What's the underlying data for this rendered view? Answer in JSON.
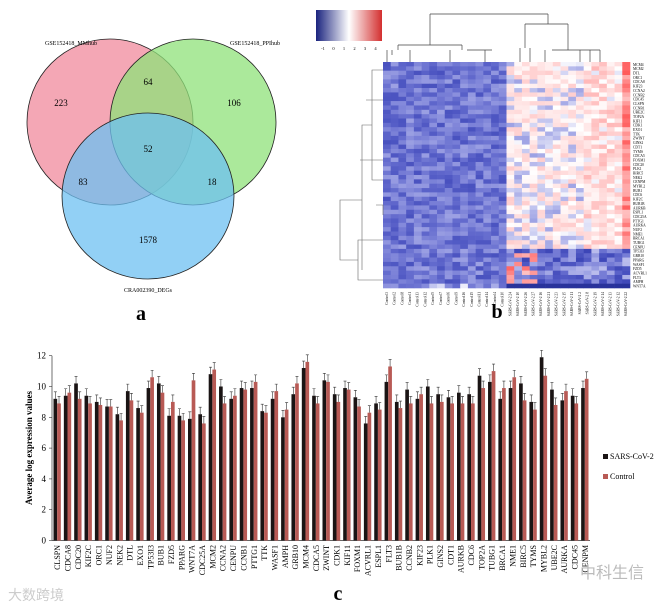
{
  "panels": {
    "a": "a",
    "b": "b",
    "c": "c"
  },
  "watermarks": [
    "大数跨境",
    "中科生信"
  ],
  "chart_data": [
    {
      "type": "venn",
      "panel": "a",
      "sets": [
        "GSE152418_MMhub",
        "GSE152418_PPIhub",
        "CRA002390_DEGs"
      ],
      "regions": {
        "A_only": 223,
        "B_only": 106,
        "C_only": 1578,
        "AB": 64,
        "AC": 83,
        "BC": 18,
        "ABC": 52
      },
      "colors": [
        "#f08a9c",
        "#8fe27a",
        "#6ec0f2"
      ]
    },
    {
      "type": "heatmap",
      "panel": "b",
      "colorbar": {
        "ticks": [
          "-1",
          "0",
          "1",
          "2",
          "3",
          "4"
        ],
        "colors": [
          "#1a237e",
          "#ffffff",
          "#d32f2f"
        ]
      },
      "rows": [
        "MCM4",
        "MCM2",
        "DTL",
        "ORC1",
        "CDCA8",
        "KIF23",
        "CCNA2",
        "CCNB2",
        "CDC45",
        "CLSPN",
        "CCNB1",
        "UBE2C",
        "TOP2A",
        "KIF11",
        "CDK1",
        "EXO1",
        "TTK",
        "ZWINT",
        "GINS2",
        "CDT1",
        "TYMS",
        "CDCA5",
        "FOXM1",
        "CDC20",
        "PLK1",
        "BIRC5",
        "NEK2",
        "CENPM",
        "MYBL2",
        "BUB1",
        "CDC6",
        "KIF2C",
        "BUB1B",
        "AURKB",
        "ESPL1",
        "CDC25A",
        "PTTG1",
        "AURKA",
        "NUF2",
        "NME1",
        "BRCA1",
        "TUBG1",
        "CENPU",
        "TP53I3",
        "GRB10",
        "PPARG",
        "WASF1",
        "FZD5",
        "ACVRL1",
        "FLT3",
        "AMPH",
        "WNT7A"
      ],
      "columns": [
        "Control3",
        "Control2",
        "Control8",
        "Control1",
        "Control13",
        "Control12",
        "Control5",
        "Control7",
        "Control6",
        "Control9",
        "Control16",
        "Control15",
        "Control11",
        "Control14",
        "Control4",
        "Control10",
        "SARS-CoV-2 24",
        "SARS-CoV-2 10",
        "SARS-CoV-2 26",
        "SARS-CoV-2 27",
        "SARS-CoV-2 16",
        "SARS-CoV-2 21",
        "SARS-CoV-2 23",
        "SARS-CoV-2 15",
        "SARS-CoV-2 11",
        "SARS-CoV-2 2",
        "SARS-CoV-2 8",
        "SARS-CoV-2 19",
        "SARS-CoV-2 14",
        "SARS-CoV-2 13",
        "SARS-CoV-2 12",
        "SARS-CoV-2 22"
      ]
    },
    {
      "type": "bar",
      "panel": "c",
      "ylabel": "Average log expression values",
      "ylim": [
        0,
        12
      ],
      "yticks": [
        0,
        2,
        4,
        6,
        8,
        10,
        12
      ],
      "categories": [
        "CLSPN",
        "CDCA8",
        "CDC20",
        "KIF2C",
        "ORC1",
        "NUF2",
        "NEK2",
        "DTL",
        "EXO1",
        "TP53I3",
        "BUB1",
        "FZD5",
        "PPARG",
        "WNT7A",
        "CDC25A",
        "MCM2",
        "CCNA2",
        "CENPU",
        "CCNB1",
        "PTTG1",
        "TTK",
        "WASF1",
        "AMPH",
        "GRB10",
        "MCM4",
        "CDCA5",
        "ZWINT",
        "CDK1",
        "KIF11",
        "FOXM1",
        "ACVRL1",
        "ESPL1",
        "FLT3",
        "BUB1B",
        "CCNB2",
        "KIF23",
        "PLK1",
        "GINS2",
        "CDT1",
        "AURKB",
        "CDC6",
        "TOP2A",
        "TUBG1",
        "BRCA1",
        "NME1",
        "BIRC5",
        "TYMS",
        "MYBL2",
        "UBE2C",
        "AURKA",
        "CDC45",
        "CENPM"
      ],
      "series": [
        {
          "name": "SARS-CoV-2",
          "color": "#1a1414",
          "values": [
            9.2,
            9.4,
            10.2,
            9.4,
            9.0,
            8.7,
            8.2,
            9.7,
            8.6,
            9.9,
            10.2,
            8.1,
            8.1,
            7.9,
            8.2,
            10.8,
            10.0,
            9.2,
            9.9,
            9.9,
            8.4,
            9.2,
            8.0,
            9.5,
            11.2,
            9.4,
            10.4,
            9.5,
            9.9,
            9.3,
            7.6,
            8.9,
            10.3,
            9.0,
            9.8,
            9.2,
            10.0,
            9.5,
            9.3,
            9.6,
            9.5,
            10.7,
            10.3,
            9.2,
            9.9,
            10.2,
            9.0,
            11.9,
            9.8,
            9.1,
            9.4,
            9.9
          ]
        },
        {
          "name": "Control",
          "color": "#b85a55",
          "values": [
            8.9,
            9.6,
            9.2,
            8.9,
            8.8,
            8.7,
            7.8,
            9.1,
            8.3,
            10.6,
            9.6,
            9.0,
            7.8,
            10.4,
            7.6,
            11.1,
            8.9,
            9.4,
            9.8,
            10.3,
            8.3,
            9.7,
            8.5,
            10.2,
            11.6,
            8.9,
            10.3,
            9.0,
            9.8,
            8.7,
            8.3,
            8.5,
            11.3,
            8.6,
            8.9,
            9.5,
            8.9,
            9.0,
            8.9,
            8.9,
            8.9,
            9.9,
            11.0,
            9.9,
            10.6,
            9.1,
            8.5,
            10.7,
            8.8,
            9.7,
            8.9,
            10.5
          ]
        }
      ],
      "legend": "right"
    }
  ]
}
